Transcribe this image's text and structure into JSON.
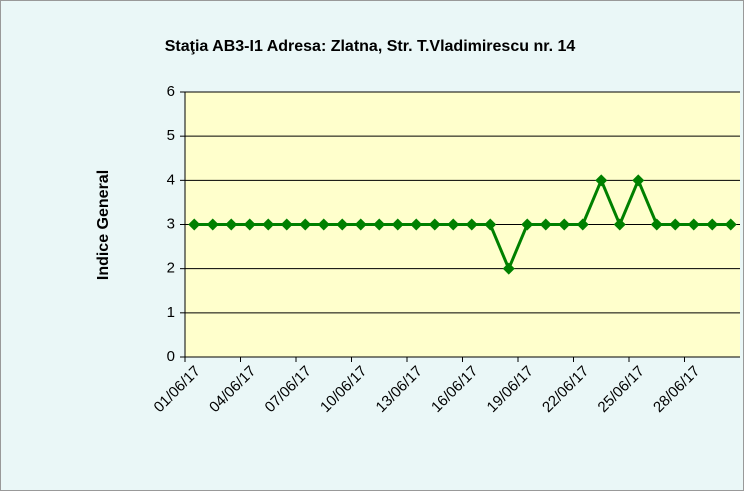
{
  "chart_data": {
    "type": "line",
    "title": "Staţia AB3-I1 Adresa: Zlatna, Str. T.Vladimirescu nr. 14",
    "y_label": "Indice General",
    "categories": [
      "01/06/17",
      null,
      null,
      "04/06/17",
      null,
      null,
      "07/06/17",
      null,
      null,
      "10/06/17",
      null,
      null,
      "13/06/17",
      null,
      null,
      "16/06/17",
      null,
      null,
      "19/06/17",
      null,
      null,
      "22/06/17",
      null,
      null,
      "25/06/17",
      null,
      null,
      "28/06/17",
      null,
      null
    ],
    "series": [
      {
        "color": "#008000",
        "values": [
          3,
          3,
          3,
          3,
          3,
          3,
          3,
          3,
          3,
          3,
          3,
          3,
          3,
          3,
          3,
          3,
          3,
          2,
          3,
          3,
          3,
          3,
          4,
          3,
          4,
          3,
          3,
          3,
          3,
          3
        ]
      }
    ],
    "ylim": [
      0,
      6
    ],
    "yticks": [
      0,
      1,
      2,
      3,
      4,
      5,
      6
    ],
    "grid": true
  }
}
